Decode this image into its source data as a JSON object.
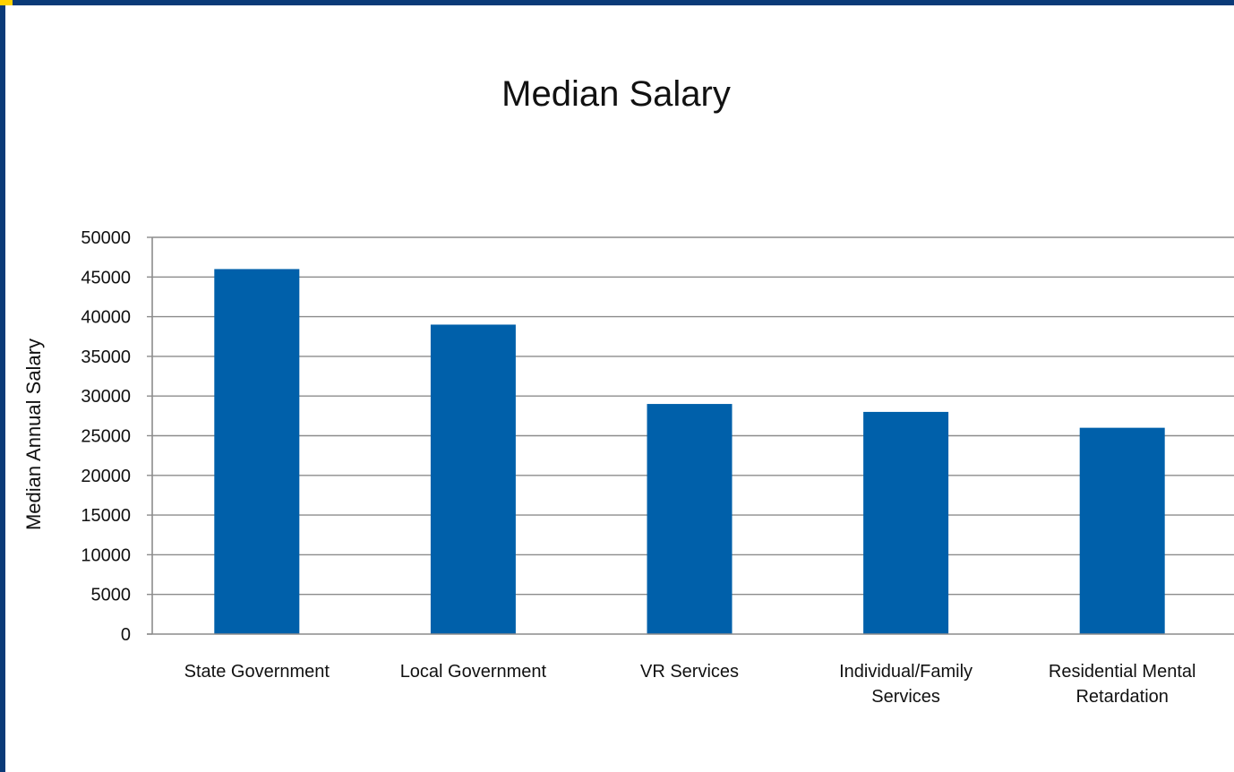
{
  "colors": {
    "frame_border": "#0a3a78",
    "bar": "#0060aa",
    "gridline": "#8c8c8c",
    "axis": "#8c8c8c",
    "text": "#111111"
  },
  "chart_data": {
    "type": "bar",
    "title": "Median Salary",
    "xlabel": "",
    "ylabel": "Median Annual Salary",
    "ylim": [
      0,
      50000
    ],
    "y_ticks": [
      "0",
      "5000",
      "10000",
      "15000",
      "20000",
      "25000",
      "30000",
      "35000",
      "40000",
      "45000",
      "50000"
    ],
    "categories": [
      [
        "State Government"
      ],
      [
        "Local Government"
      ],
      [
        "VR Services"
      ],
      [
        "Individual/Family",
        "Services"
      ],
      [
        "Residential Mental",
        "Retardation"
      ]
    ],
    "values": [
      46000,
      39000,
      29000,
      28000,
      26000
    ],
    "grid": true,
    "legend": "none"
  }
}
